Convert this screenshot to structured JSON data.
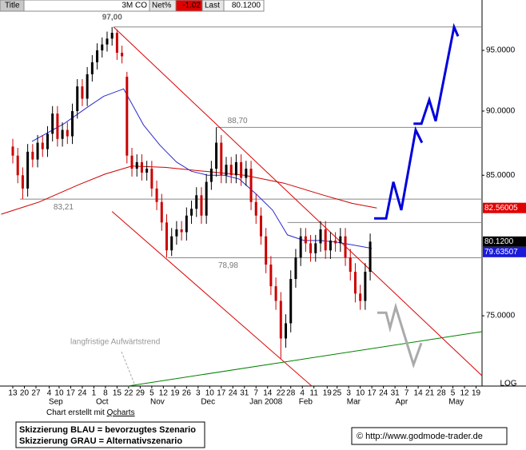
{
  "header": {
    "title_label": "Title",
    "symbol": "3M CO",
    "net_label": "Net%",
    "net_value": -1.02,
    "last_label": "Last",
    "last_value": {
      "value": 80.12,
      "label": "80.1200"
    }
  },
  "footer": {
    "credit_prefix": "Chart erstellt mit",
    "credit_link": "Qcharts",
    "legend": [
      "Skizzierung BLAU = bevorzugtes Szenario",
      "Skizzierung GRAU = Alternativszenario"
    ],
    "copyright": "© http://www.godmode-trader.de"
  },
  "chart_data": {
    "type": "candlestick",
    "log_scale": true,
    "xlim": [
      -7.73,
      283.6
    ],
    "ylim": [
      70.45,
      99.36
    ],
    "yticks": [
      {
        "value": 95,
        "label": "95.0000"
      },
      {
        "value": 90,
        "label": "90.0000"
      },
      {
        "value": 85,
        "label": "85.0000"
      },
      {
        "value": 75,
        "label": "75.0000"
      }
    ],
    "xticks": [
      {
        "value": 0,
        "label": "13"
      },
      {
        "value": 7,
        "label": "20"
      },
      {
        "value": 14,
        "label": "27"
      },
      {
        "value": 22,
        "label": "4"
      },
      {
        "value": 28,
        "label": "10"
      },
      {
        "value": 35,
        "label": "17"
      },
      {
        "value": 42,
        "label": "24"
      },
      {
        "value": 49,
        "label": "1"
      },
      {
        "value": 56,
        "label": "8"
      },
      {
        "value": 63,
        "label": "15"
      },
      {
        "value": 70,
        "label": "22"
      },
      {
        "value": 77,
        "label": "29"
      },
      {
        "value": 84,
        "label": "5"
      },
      {
        "value": 91,
        "label": "12"
      },
      {
        "value": 98,
        "label": "19"
      },
      {
        "value": 105,
        "label": "26"
      },
      {
        "value": 112,
        "label": "3"
      },
      {
        "value": 119,
        "label": "10"
      },
      {
        "value": 126,
        "label": "17"
      },
      {
        "value": 133,
        "label": "24"
      },
      {
        "value": 140,
        "label": "31"
      },
      {
        "value": 147,
        "label": "7"
      },
      {
        "value": 154,
        "label": "14"
      },
      {
        "value": 162,
        "label": "22"
      },
      {
        "value": 168,
        "label": "28"
      },
      {
        "value": 175,
        "label": "4"
      },
      {
        "value": 182,
        "label": "11"
      },
      {
        "value": 190,
        "label": "19"
      },
      {
        "value": 196,
        "label": "25"
      },
      {
        "value": 203,
        "label": "3"
      },
      {
        "value": 210,
        "label": "10"
      },
      {
        "value": 217,
        "label": "17"
      },
      {
        "value": 224,
        "label": "24"
      },
      {
        "value": 231,
        "label": "31"
      },
      {
        "value": 238,
        "label": "7"
      },
      {
        "value": 245,
        "label": "14"
      },
      {
        "value": 252,
        "label": "21"
      },
      {
        "value": 259,
        "label": "28"
      },
      {
        "value": 266,
        "label": "5"
      },
      {
        "value": 273,
        "label": "12"
      },
      {
        "value": 280,
        "label": "19"
      }
    ],
    "month_ticks": [
      {
        "value": 26,
        "label": "Sep"
      },
      {
        "value": 54,
        "label": "Oct"
      },
      {
        "value": 87.4,
        "label": "Nov"
      },
      {
        "value": 118,
        "label": "Dec"
      },
      {
        "value": 153,
        "label": "Jan 2008"
      },
      {
        "value": 177,
        "label": "Feb"
      },
      {
        "value": 206,
        "label": "Mar"
      },
      {
        "value": 235,
        "label": "Apr"
      },
      {
        "value": 268,
        "label": "May"
      }
    ],
    "candles": {
      "up_color": "#000000",
      "down_color": "#cc0000",
      "x": [
        0,
        3,
        6,
        9,
        12,
        15,
        18,
        21,
        24,
        27,
        30,
        33,
        36,
        39,
        42,
        45,
        48,
        51,
        54,
        57,
        60,
        63,
        66,
        69,
        72,
        75,
        78,
        81,
        84,
        87,
        90,
        93,
        96,
        99,
        102,
        105,
        108,
        111,
        114,
        117,
        120,
        123,
        126,
        129,
        132,
        135,
        138,
        141,
        144,
        147,
        150,
        153,
        156,
        159,
        162,
        165,
        168,
        171,
        174,
        177,
        180,
        183,
        186,
        189,
        192,
        195,
        198,
        201,
        204,
        207,
        210,
        213,
        216
      ],
      "open": [
        87.2,
        86.5,
        85.0,
        84.0,
        86.8,
        86.2,
        87.5,
        87.0,
        88.2,
        89.8,
        87.8,
        88.5,
        88.0,
        90.0,
        92.0,
        91.0,
        93.0,
        94.0,
        95.0,
        95.5,
        96.0,
        96.5,
        94.8,
        92.8,
        86.5,
        85.5,
        86.0,
        85.2,
        85.5,
        84.0,
        83.0,
        81.5,
        79.5,
        80.5,
        81.0,
        80.8,
        82.0,
        82.5,
        83.5,
        82.0,
        84.5,
        85.5,
        87.5,
        85.0,
        85.8,
        85.0,
        86.0,
        84.8,
        85.5,
        83.0,
        82.0,
        80.5,
        78.5,
        77.0,
        76.0,
        73.5,
        74.5,
        77.5,
        79.0,
        80.5,
        80.0,
        79.3,
        80.0,
        81.0,
        79.5,
        80.2,
        80.0,
        80.5,
        79.0,
        78.0,
        76.5,
        76.0,
        78.0
      ],
      "high": [
        87.8,
        87.1,
        85.6,
        87.4,
        87.4,
        88.1,
        88.1,
        88.8,
        90.4,
        90.4,
        89.1,
        89.1,
        90.6,
        92.6,
        92.6,
        93.6,
        94.6,
        95.6,
        96.1,
        96.6,
        97.0,
        96.8,
        95.4,
        93.2,
        87.1,
        86.6,
        86.6,
        86.1,
        86.1,
        84.6,
        83.6,
        82.1,
        81.1,
        81.6,
        81.6,
        82.6,
        83.1,
        84.1,
        84.1,
        85.1,
        86.1,
        88.7,
        88.1,
        86.4,
        86.4,
        86.6,
        86.6,
        86.1,
        86.1,
        83.6,
        82.6,
        81.1,
        79.1,
        77.6,
        76.6,
        75.1,
        78.1,
        79.6,
        81.1,
        81.1,
        80.6,
        80.6,
        81.6,
        81.6,
        80.8,
        80.8,
        81.1,
        81.1,
        79.6,
        78.6,
        77.1,
        78.6,
        80.7
      ],
      "low": [
        85.9,
        84.4,
        83.21,
        83.4,
        85.6,
        85.6,
        86.4,
        86.4,
        87.6,
        87.2,
        87.2,
        87.4,
        87.4,
        89.4,
        90.4,
        90.4,
        92.4,
        93.4,
        94.4,
        94.9,
        95.4,
        94.2,
        93.9,
        85.9,
        84.9,
        84.9,
        84.6,
        84.6,
        83.4,
        82.4,
        80.9,
        78.98,
        79.1,
        79.9,
        80.2,
        80.2,
        81.4,
        81.9,
        81.4,
        81.4,
        83.9,
        84.9,
        84.4,
        84.4,
        84.4,
        84.4,
        84.2,
        84.2,
        82.4,
        81.4,
        79.9,
        77.9,
        76.4,
        75.4,
        72.2,
        72.9,
        73.9,
        76.9,
        78.4,
        79.4,
        78.7,
        78.7,
        79.4,
        78.9,
        78.9,
        79.4,
        79.4,
        78.4,
        77.4,
        75.9,
        75.4,
        75.4,
        77.4
      ],
      "close": [
        86.5,
        85.0,
        84.0,
        86.8,
        86.2,
        87.5,
        87.0,
        88.2,
        89.8,
        87.8,
        88.5,
        88.0,
        90.0,
        92.0,
        91.0,
        93.0,
        94.0,
        95.0,
        95.5,
        96.0,
        96.5,
        94.8,
        94.5,
        86.5,
        85.5,
        86.0,
        85.2,
        85.5,
        84.0,
        83.0,
        81.5,
        79.5,
        80.5,
        81.0,
        80.8,
        82.0,
        82.5,
        83.5,
        82.0,
        84.5,
        85.5,
        87.5,
        85.0,
        85.8,
        85.0,
        86.0,
        84.8,
        85.5,
        83.0,
        82.0,
        80.5,
        78.5,
        77.0,
        76.0,
        73.5,
        74.5,
        77.5,
        79.0,
        80.5,
        80.0,
        79.3,
        80.0,
        81.0,
        79.5,
        80.2,
        80.0,
        80.5,
        79.0,
        78.0,
        76.5,
        76.0,
        78.0,
        80.12
      ]
    },
    "lines": [
      {
        "color": "#2a2ad0",
        "x": [
          11.6,
          31,
          45,
          55,
          67,
          79,
          89,
          99,
          108,
          118,
          128,
          137,
          147,
          157,
          166,
          176,
          186,
          195,
          205,
          217
        ],
        "values": [
          87.6,
          89.0,
          90.3,
          91.2,
          91.8,
          88.9,
          87.3,
          86.0,
          85.3,
          85.0,
          85.0,
          84.7,
          83.6,
          82.4,
          80.6,
          80.2,
          80.2,
          80.1,
          79.9,
          79.64
        ]
      },
      {
        "color": "#cc0000",
        "x": [
          -7,
          16,
          40,
          56,
          72,
          92,
          116,
          140,
          164,
          188,
          205,
          220
        ],
        "values": [
          82.1,
          83.0,
          84.3,
          85.1,
          85.7,
          85.6,
          85.3,
          85.0,
          84.4,
          83.5,
          82.9,
          82.56
        ]
      }
    ],
    "trendlines": [
      {
        "color": "#dd0000",
        "x": [
          60.9,
          283.6
        ],
        "values": [
          97.0,
          71.1
        ]
      },
      {
        "color": "#dd0000",
        "x": [
          60,
          180.7
        ],
        "values": [
          82.3,
          70.45
        ]
      },
      {
        "color": "#008000",
        "x": [
          69.6,
          283.6
        ],
        "values": [
          70.45,
          73.95
        ]
      }
    ],
    "levels": [
      {
        "value": 97,
        "label": "97,00",
        "from": 61
      },
      {
        "value": 88.7,
        "label": "88,70",
        "from": 123
      },
      {
        "value": 83.21,
        "label": "83,21",
        "from": 4.3
      },
      {
        "value": 78.98,
        "label": "78,98",
        "from": 93.7
      },
      {
        "value": 81.5,
        "label": null,
        "from": 166
      }
    ],
    "scenarios": [
      {
        "color": "#0000dd",
        "x": [
          218.4,
          225.6,
          230,
          234.8,
          243.5,
          247.3
        ],
        "values": [
          81.8,
          81.8,
          84.5,
          82.4,
          88.5,
          87.5
        ]
      },
      {
        "color": "#0000dd",
        "x": [
          242.2,
          247,
          251.7,
          255.6,
          266.7,
          269.1
        ],
        "values": [
          89.0,
          89.0,
          90.9,
          89.2,
          97.0,
          96.2
        ]
      },
      {
        "color": "#aaaaaa",
        "x": [
          220.3,
          225.6,
          228,
          231.4,
          242.2,
          246.9
        ],
        "values": [
          75.2,
          75.2,
          74.2,
          75.6,
          71.8,
          73.2
        ]
      }
    ],
    "price_boxes": {
      "values": [
        82.56005,
        {
          "value": 80.12,
          "label": "80.1200"
        },
        79.63507
      ],
      "colors": [
        "#e00000",
        "#000000",
        "#1a1ad8"
      ]
    },
    "scale_label": "LOG",
    "annotation": "langfristige Aufwärtstrend"
  }
}
